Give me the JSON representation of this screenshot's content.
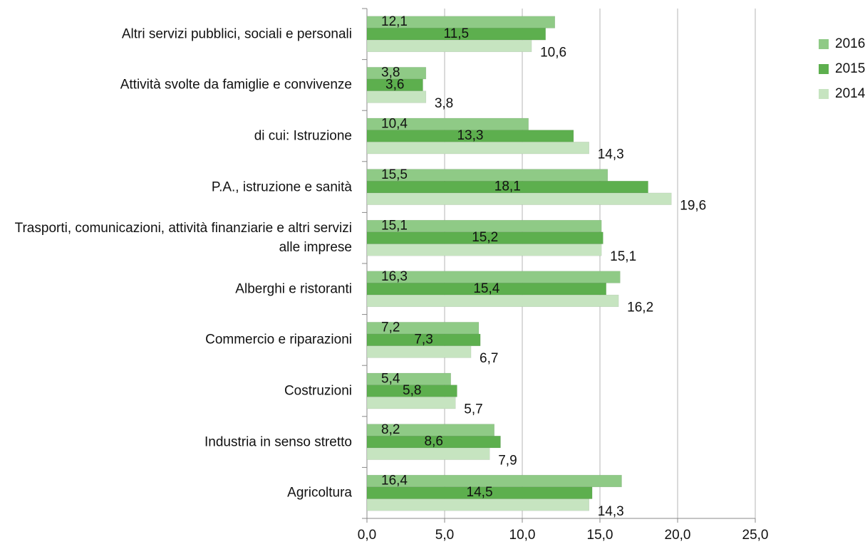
{
  "chart_data": {
    "type": "hbar",
    "categories": [
      "Altri servizi pubblici, sociali e personali",
      "Attività svolte da famiglie e convivenze",
      "di cui: Istruzione",
      "P.A., istruzione e sanità",
      "Trasporti, comunicazioni, attività finanziarie e altri servizi alle imprese",
      "Alberghi e ristoranti",
      "Commercio e riparazioni",
      "Costruzioni",
      "Industria in senso stretto",
      "Agricoltura"
    ],
    "series": [
      {
        "name": "2016",
        "color": "#8fca86",
        "values": [
          12.1,
          3.8,
          10.4,
          15.5,
          15.1,
          16.3,
          7.2,
          5.4,
          8.2,
          16.4
        ],
        "value_labels": [
          "12,1",
          "3,8",
          "10,4",
          "15,5",
          "15,1",
          "16,3",
          "7,2",
          "5,4",
          "8,2",
          "16,4"
        ]
      },
      {
        "name": "2015",
        "color": "#5daf4e",
        "values": [
          11.5,
          3.6,
          13.3,
          18.1,
          15.2,
          15.4,
          7.3,
          5.8,
          8.6,
          14.5
        ],
        "value_labels": [
          "11,5",
          "3,6",
          "13,3",
          "18,1",
          "15,2",
          "15,4",
          "7,3",
          "5,8",
          "8,6",
          "14,5"
        ]
      },
      {
        "name": "2014",
        "color": "#c6e4c0",
        "values": [
          10.6,
          3.8,
          14.3,
          19.6,
          15.1,
          16.2,
          6.7,
          5.7,
          7.9,
          14.3
        ],
        "value_labels": [
          "10,6",
          "3,8",
          "14,3",
          "19,6",
          "15,1",
          "16,2",
          "6,7",
          "5,7",
          "7,9",
          "14,3"
        ]
      }
    ],
    "xlim": [
      0,
      25
    ],
    "xticks": [
      {
        "value": 0,
        "label": "0,0"
      },
      {
        "value": 5,
        "label": "5,0"
      },
      {
        "value": 10,
        "label": "10,0"
      },
      {
        "value": 15,
        "label": "15,0"
      },
      {
        "value": 20,
        "label": "20,0"
      },
      {
        "value": 25,
        "label": "25,0"
      }
    ],
    "grid": true,
    "legend": "right"
  }
}
